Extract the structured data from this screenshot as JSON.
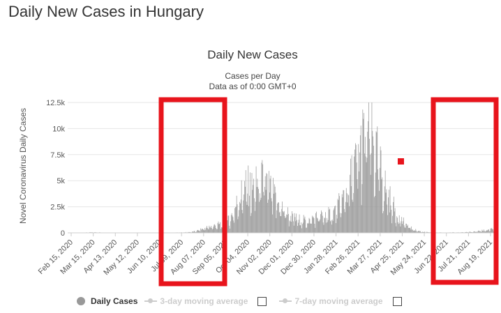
{
  "page": {
    "title": "Daily New Cases in Hungary"
  },
  "chart_data": {
    "type": "bar",
    "title": "Daily New Cases",
    "subtitle_lines": [
      "Cases per Day",
      "Data as of 0:00 GMT+0"
    ],
    "xlabel": "",
    "ylabel": "Novel Coronavirus Daily Cases",
    "ylim": [
      0,
      12500
    ],
    "y_ticks": [
      0,
      2500,
      5000,
      7500,
      10000,
      12500
    ],
    "y_tick_labels": [
      "0",
      "2.5k",
      "5k",
      "7.5k",
      "10k",
      "12.5k"
    ],
    "x_tick_labels": [
      "Feb 15, 2020",
      "Mar 15, 2020",
      "Apr 13, 2020",
      "May 12, 2020",
      "Jun 10, 2020",
      "Jul 09, 2020",
      "Aug 07, 2020",
      "Sep 05, 2020",
      "Oct 04, 2020",
      "Nov 02, 2020",
      "Dec 01, 2020",
      "Dec 30, 2020",
      "Jan 28, 2021",
      "Feb 26, 2021",
      "Mar 27, 2021",
      "Apr 25, 2021",
      "May 24, 2021",
      "Jun 22, 2021",
      "Jul 21, 2021",
      "Aug 19, 2021"
    ],
    "grid": true,
    "bar_color": "#999999",
    "series": [
      {
        "name": "Daily Cases",
        "weekly_average_values": [
          0,
          0,
          2,
          10,
          25,
          40,
          50,
          45,
          35,
          25,
          20,
          15,
          12,
          12,
          15,
          15,
          12,
          10,
          10,
          10,
          12,
          15,
          15,
          18,
          20,
          25,
          30,
          40,
          60,
          90,
          150,
          300,
          450,
          550,
          650,
          750,
          850,
          950,
          1300,
          2200,
          3200,
          4000,
          4600,
          4200,
          4500,
          4900,
          5200,
          4500,
          3800,
          3000,
          2500,
          2100,
          1700,
          1400,
          1300,
          1200,
          1200,
          1300,
          1500,
          1600,
          1600,
          1700,
          1900,
          2300,
          2900,
          3700,
          4800,
          6000,
          7200,
          8500,
          9800,
          9500,
          8000,
          6500,
          5000,
          3800,
          2800,
          1900,
          1300,
          900,
          600,
          350,
          200,
          120,
          70,
          50,
          40,
          35,
          30,
          30,
          35,
          40,
          45,
          55,
          70,
          100,
          140,
          200,
          260,
          330
        ]
      },
      {
        "name": "3-day moving average",
        "values": [],
        "visible": false
      },
      {
        "name": "7-day moving average",
        "values": [],
        "visible": false
      }
    ]
  },
  "legend": {
    "items": [
      {
        "label": "Daily Cases",
        "active": true
      },
      {
        "label": "3-day moving average",
        "active": false
      },
      {
        "label": "7-day moving average",
        "active": false
      }
    ]
  },
  "annotations": {
    "highlight_color": "#e8141c"
  }
}
